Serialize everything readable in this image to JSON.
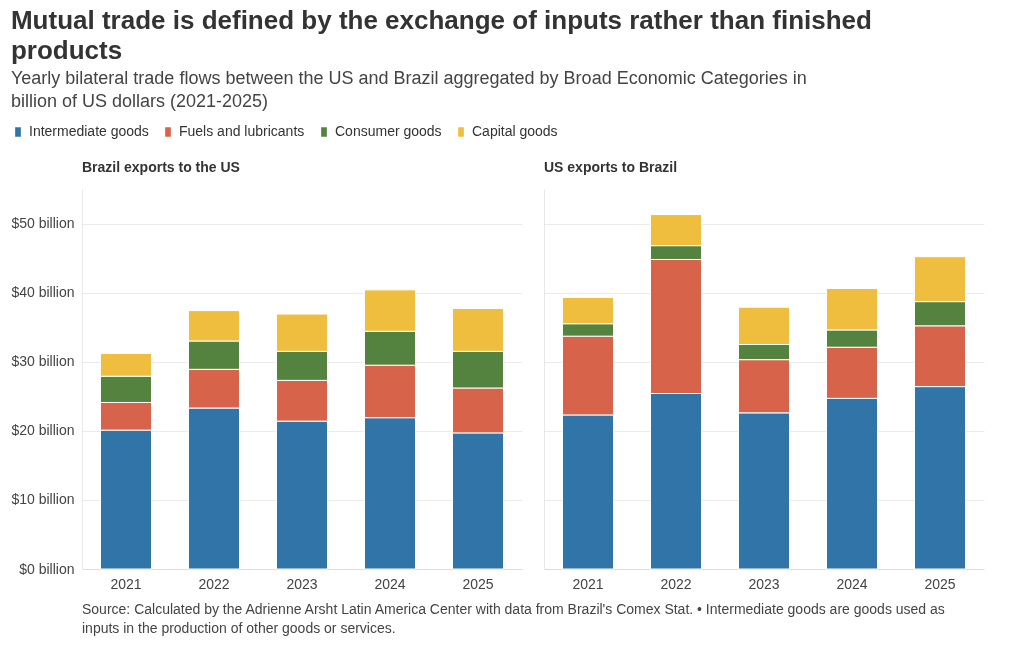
{
  "chart_data": [
    {
      "type": "other",
      "title": "Mutual trade is defined by the exchange of inputs rather than finished products",
      "subtitle": "Yearly bilateral trade flows between the US and Brazil aggregated by Broad Economic Categories in billion of US dollars (2021-2025)",
      "annotations": [
        "Source: Calculated by the Adrienne Arsht Latin America Center with data from Brazil's Comex Stat. • Intermediate goods are goods used as inputs in the production of other goods or services."
      ]
    },
    {
      "type": "bar",
      "title": "Brazil exports to the US",
      "stacked": true,
      "grid": "y",
      "legend": "top",
      "categories": [
        "2021",
        "2022",
        "2023",
        "2024",
        "2025"
      ],
      "ylim": [
        0,
        55
      ],
      "yticks": [
        {
          "value": 0,
          "label": "$0 billion"
        },
        {
          "value": 10,
          "label": "$10 billion"
        },
        {
          "value": 20,
          "label": "$20 billion"
        },
        {
          "value": 30,
          "label": "$30 billion"
        },
        {
          "value": 40,
          "label": "$40 billion"
        },
        {
          "value": 50,
          "label": "$50 billion"
        }
      ],
      "series": [
        {
          "name": "Intermediate goods",
          "color": "#3174a8",
          "values": [
            20.1,
            23.3,
            21.4,
            21.9,
            19.7
          ]
        },
        {
          "name": "Fuels and lubricants",
          "color": "#d8634b",
          "values": [
            4.0,
            5.6,
            5.9,
            7.6,
            6.5
          ]
        },
        {
          "name": "Consumer goods",
          "color": "#548340",
          "values": [
            3.8,
            4.1,
            4.2,
            4.9,
            5.3
          ]
        },
        {
          "name": "Capital goods",
          "color": "#f0be3e",
          "values": [
            3.3,
            4.4,
            5.4,
            6.0,
            6.2
          ]
        }
      ]
    },
    {
      "type": "bar",
      "title": "US exports to Brazil",
      "stacked": true,
      "grid": "y",
      "tick_labels": "x",
      "categories": [
        "2021",
        "2022",
        "2023",
        "2024",
        "2025"
      ],
      "ylim": [
        0,
        55
      ],
      "yticks": [
        {
          "value": 0,
          "label": null
        },
        {
          "value": 10,
          "label": null
        },
        {
          "value": 20,
          "label": null
        },
        {
          "value": 30,
          "label": null
        },
        {
          "value": 40,
          "label": null
        },
        {
          "value": 50,
          "label": null
        }
      ],
      "series": [
        {
          "color": "#3174a8",
          "values": [
            22.3,
            25.4,
            22.6,
            24.7,
            26.4
          ]
        },
        {
          "color": "#d8634b",
          "values": [
            11.4,
            19.4,
            7.7,
            7.4,
            8.8
          ]
        },
        {
          "color": "#548340",
          "values": [
            1.8,
            2.0,
            2.2,
            2.5,
            3.5
          ]
        },
        {
          "color": "#f0be3e",
          "values": [
            3.8,
            4.5,
            5.4,
            6.0,
            6.5
          ]
        }
      ]
    }
  ]
}
